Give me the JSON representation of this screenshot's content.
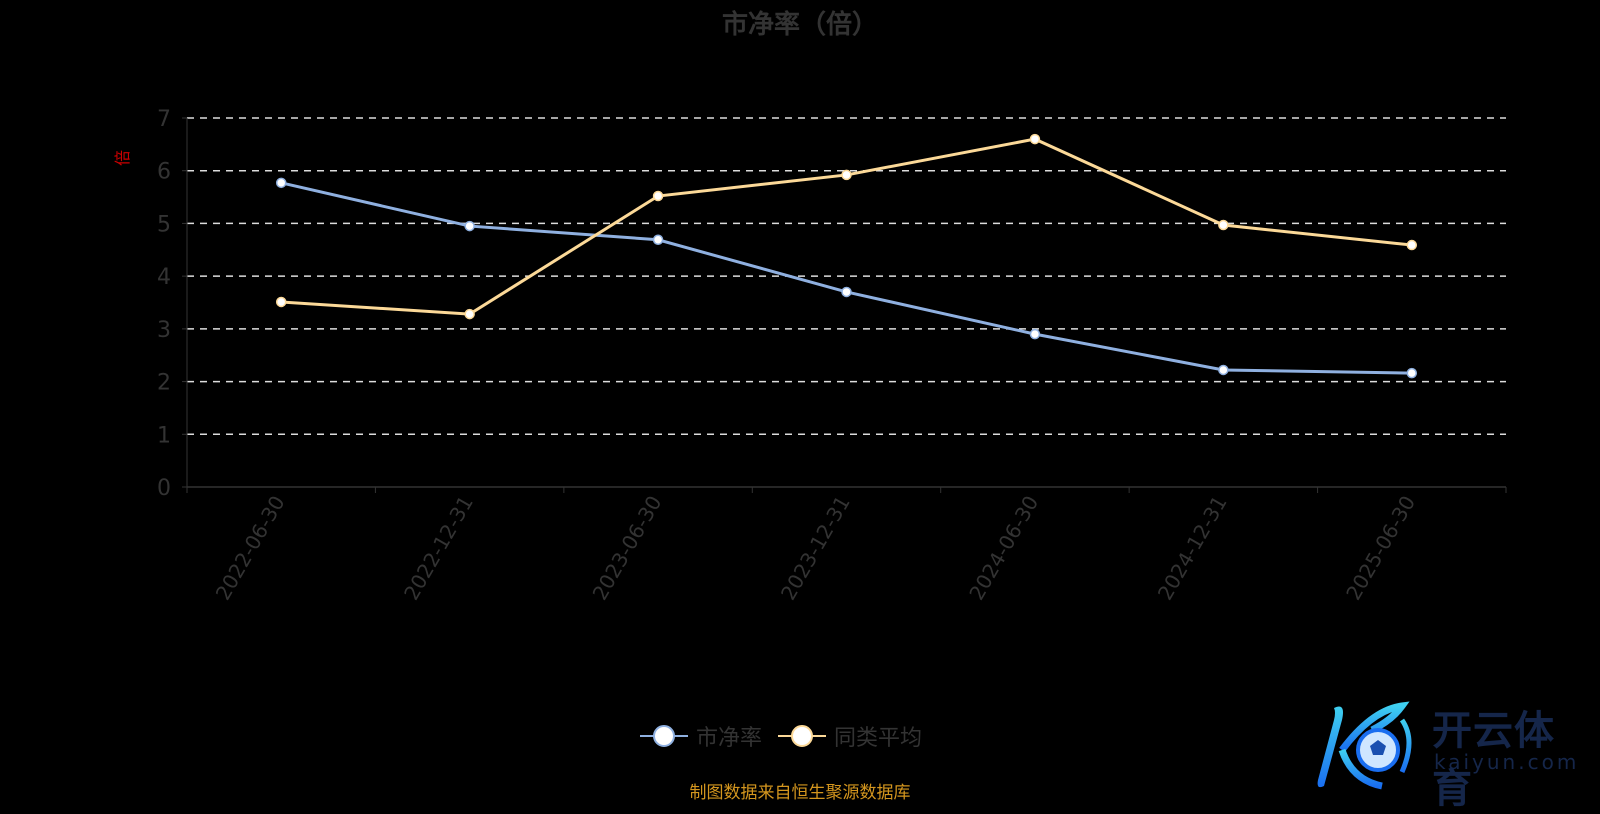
{
  "chart_data": {
    "type": "line",
    "title": "市净率（倍）",
    "ylabel": "倍",
    "xlabel": "",
    "categories": [
      "2022-06-30",
      "2022-12-31",
      "2023-06-30",
      "2023-12-31",
      "2024-06-30",
      "2024-12-31",
      "2025-06-30"
    ],
    "ylim": [
      0,
      7
    ],
    "yticks": [
      "0",
      "1",
      "2",
      "3",
      "4",
      "5",
      "6",
      "7"
    ],
    "grid": true,
    "legend_position": "bottom",
    "series": [
      {
        "name": "市净率",
        "color": "#8fb0e0",
        "values": [
          5.77,
          4.95,
          4.69,
          3.7,
          2.9,
          2.22,
          2.16
        ]
      },
      {
        "name": "同类平均",
        "color": "#fcd998",
        "values": [
          3.51,
          3.28,
          5.52,
          5.92,
          6.6,
          4.97,
          4.59
        ]
      }
    ]
  },
  "footer": "制图数据来自恒生聚源数据库",
  "logo": {
    "cn": "开云体育",
    "en": "kaiyun.com"
  }
}
